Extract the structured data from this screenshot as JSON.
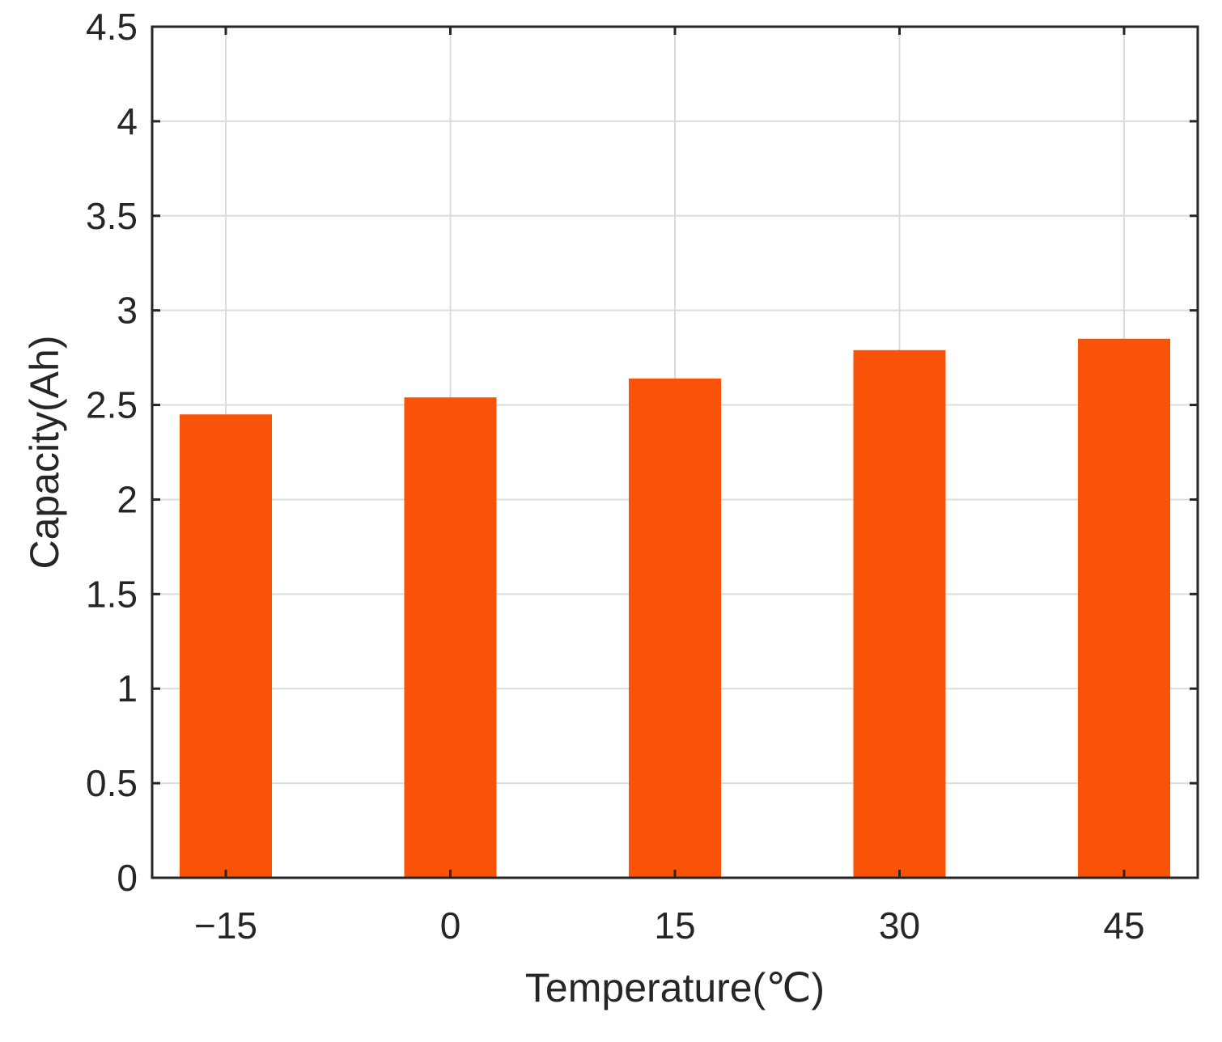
{
  "chart_data": {
    "type": "bar",
    "title": "",
    "xlabel": "Temperature(℃)",
    "ylabel": "Capacity(Ah)",
    "categories": [
      "−15",
      "0",
      "15",
      "30",
      "45"
    ],
    "values": [
      2.45,
      2.54,
      2.64,
      2.79,
      2.85
    ],
    "ylim": [
      0,
      4.5
    ],
    "yticks": [
      "0",
      "0.5",
      "1",
      "1.5",
      "2",
      "2.5",
      "3",
      "3.5",
      "4",
      "4.5"
    ],
    "grid": true,
    "bar_color": "#f9530a",
    "grid_color": "#dcdcdc",
    "axis_color": "#262626"
  }
}
